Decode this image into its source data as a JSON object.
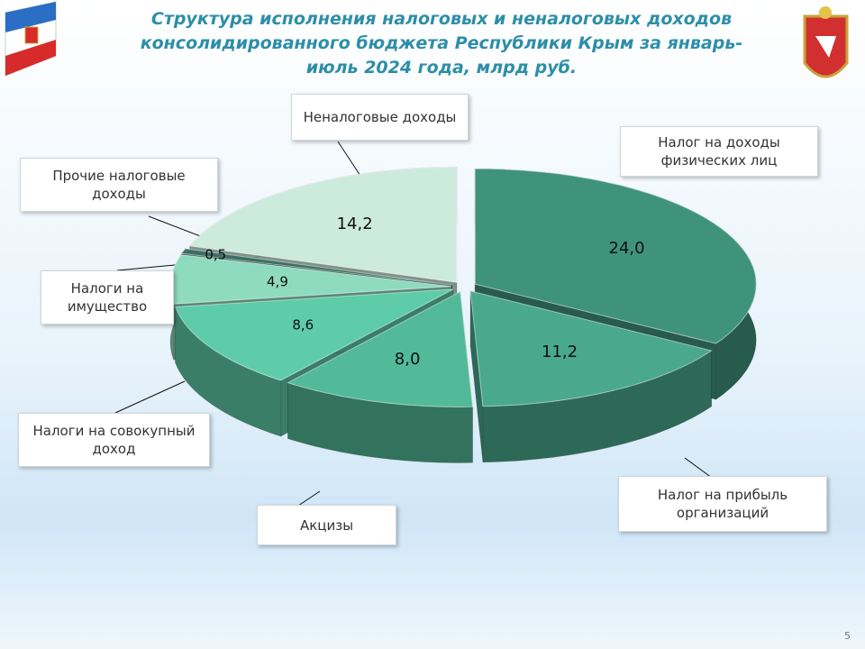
{
  "chart_data": {
    "type": "pie3d",
    "title": "Структура исполнения налоговых и неналоговых доходов консолидированного бюджета Республики Крым за январь-июль 2024 года, млрд руб.",
    "categories": [
      "Налог на доходы физических лиц",
      "Налог на прибыль организаций",
      "Акцизы",
      "Налоги на совокупный доход",
      "Налоги на имущество",
      "Прочие налоговые доходы",
      "Неналоговые доходы"
    ],
    "values": [
      24.0,
      11.2,
      8.0,
      8.6,
      4.9,
      0.5,
      14.2
    ],
    "value_labels": [
      "24,0",
      "11,2",
      "8,0",
      "8,6",
      "4,9",
      "0,5",
      "14,2"
    ],
    "colors": [
      "#3f937b",
      "#4aa98c",
      "#52ba98",
      "#5ecca8",
      "#8fdbbf",
      "#3a6f63",
      "#cdebdd"
    ]
  },
  "page_number": "5"
}
